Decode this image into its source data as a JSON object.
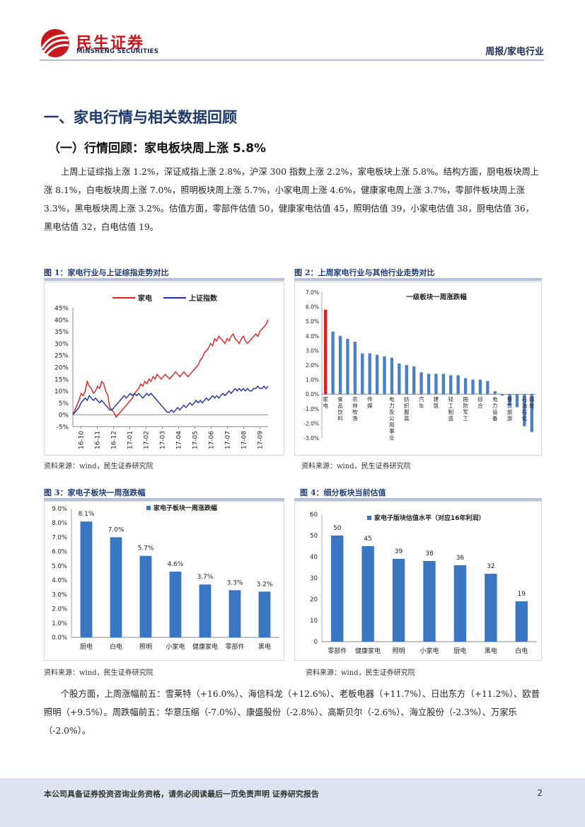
{
  "header": {
    "brand_cn": "民生证券",
    "brand_en": "MINSHENG SECURITIES",
    "right": "周报/家电行业"
  },
  "section": {
    "h1": "一、家电行情与相关数据回顾",
    "h2": "（一）行情回顾：家电板块周上涨 5.8%"
  },
  "paragraph1": "上周上证综指上涨 1.2%，深证成指上涨 2.8%，沪深 300 指数上涨 2.2%，家电板块上涨 5.8%。结构方面，厨电板块周上涨 8.1%，白电板块周上涨 7.0%，照明板块周上涨 5.7%，小家电周上涨 4.6%，健康家电周上涨 3.7%，零部件板块周上涨 3.3%，黑电板块周上涨 3.2%。估值方面，零部件估值 50，健康家电估值 45，照明估值 39，小家电估值 38，厨电估值 36，黑电估值 32，白电估值 19。",
  "paragraph2": "个股方面，上周涨幅前五：雪莱特（+16.0%）、海信科龙（+12.6%）、老板电器（+11.7%）、日出东方（+11.2%）、欧普照明（+9.5%）。周跌幅前五：华意压缩（-7.0%）、康盛股份（-2.8%）、高斯贝尔（-2.6%）、海立股份（-2.3%）、万家乐（-2.0%）。",
  "figures": {
    "fig1_title": "图 1：家电行业与上证综指走势对比",
    "fig2_title": "图 2：上周家电行业与其他行业走势对比",
    "fig3_title": "图 3：家电子板块一周涨跌幅",
    "fig4_title": "图 4：细分板块当前估值",
    "source": "资料来源：wind，民生证券研究院"
  },
  "footer": {
    "text": "本公司具备证券投资咨询业务资格，请务必阅读最后一页免责声明 证券研究报告",
    "page": "2"
  },
  "chart_data": [
    {
      "type": "line",
      "legend": [
        "家电",
        "上证指数"
      ],
      "colors": [
        "#e02020",
        "#1f2eb0"
      ],
      "x_ticks": [
        "16-10",
        "16-11",
        "16-12",
        "17-01",
        "17-02",
        "17-03",
        "17-04",
        "17-05",
        "17-06",
        "17-07",
        "17-08",
        "17-09"
      ],
      "y_ticks": [
        "45%",
        "40%",
        "35%",
        "30%",
        "25%",
        "20%",
        "15%",
        "10%",
        "5%",
        "0%",
        "-5%"
      ],
      "ylim": [
        -5,
        45
      ],
      "series": [
        {
          "name": "家电",
          "values": [
            0,
            2,
            4,
            6,
            9,
            8,
            10,
            14,
            12,
            11,
            9,
            10,
            12,
            11,
            14,
            13,
            10,
            8,
            3,
            2,
            1,
            -1,
            0,
            1,
            2,
            3,
            4,
            5,
            6,
            7,
            9,
            10,
            11,
            13,
            12,
            14,
            13,
            15,
            14,
            16,
            15,
            17,
            16,
            15,
            16,
            17,
            16,
            15,
            16,
            17,
            18,
            17,
            16,
            17,
            18,
            17,
            16,
            17,
            18,
            19,
            20,
            21,
            23,
            24,
            26,
            27,
            28,
            30,
            29,
            32,
            31,
            33,
            32,
            31,
            30,
            32,
            31,
            33,
            34,
            32,
            31,
            30,
            32,
            33,
            31,
            30,
            31,
            32,
            33,
            34,
            33,
            35,
            36,
            37,
            38,
            40
          ]
        },
        {
          "name": "上证指数",
          "values": [
            0,
            1,
            2,
            3,
            5,
            6,
            7,
            6,
            8,
            7,
            6,
            7,
            6,
            5,
            6,
            5,
            4,
            3,
            2,
            2,
            3,
            4,
            5,
            6,
            7,
            8,
            7,
            8,
            9,
            8,
            9,
            8,
            9,
            8,
            7,
            8,
            9,
            8,
            9,
            8,
            7,
            6,
            5,
            4,
            3,
            2,
            1,
            1,
            2,
            1,
            2,
            3,
            2,
            3,
            4,
            3,
            4,
            5,
            4,
            5,
            6,
            5,
            6,
            5,
            6,
            7,
            6,
            7,
            8,
            7,
            8,
            7,
            8,
            9,
            8,
            9,
            10,
            9,
            10,
            11,
            10,
            11,
            10,
            11,
            10,
            11,
            10,
            10,
            11,
            11,
            12,
            11,
            11,
            12,
            11,
            12
          ]
        }
      ]
    },
    {
      "type": "bar",
      "title": "一级板块一周涨跌幅",
      "y_ticks": [
        "7.0%",
        "6.0%",
        "5.0%",
        "4.0%",
        "3.0%",
        "2.0%",
        "1.0%",
        "0.0%",
        "-1.0%",
        "-2.0%",
        "-3.0%"
      ],
      "ylim": [
        -3,
        7
      ],
      "values": [
        5.8,
        4.3,
        4.0,
        3.8,
        3.6,
        2.8,
        2.8,
        2.7,
        2.6,
        2.5,
        2.1,
        2.0,
        1.9,
        1.5,
        1.4,
        1.4,
        1.4,
        1.3,
        1.3,
        1.1,
        1.0,
        1.0,
        0.9,
        0.2,
        -0.1,
        -0.8,
        -0.9,
        -2.2,
        -2.6
      ],
      "highlight_index": 0,
      "colors": [
        "#e02020",
        "#4a80c8"
      ],
      "categories": [
        "家电",
        "",
        "食品饮料",
        "",
        "农林牧渔",
        "",
        "传媒",
        "",
        "",
        "电力及公用事业",
        "",
        "纺织服装",
        "",
        "汽车",
        "",
        "建筑",
        "",
        "轻工制造",
        "",
        "国防军工",
        "",
        "综合",
        "",
        "电力设备",
        "",
        "餐饮旅游",
        "",
        "石油石化",
        "煤炭"
      ]
    },
    {
      "type": "bar",
      "title": "家电子板块一周涨跌幅",
      "categories": [
        "厨电",
        "白电",
        "照明",
        "小家电",
        "健康家电",
        "零部件",
        "黑电"
      ],
      "values": [
        8.1,
        7.0,
        5.7,
        4.6,
        3.7,
        3.3,
        3.2
      ],
      "labels": [
        "8.1%",
        "7.0%",
        "5.7%",
        "4.6%",
        "3.7%",
        "3.3%",
        "3.2%"
      ],
      "y_ticks": [
        "9.0%",
        "8.0%",
        "7.0%",
        "6.0%",
        "5.0%",
        "4.0%",
        "3.0%",
        "2.0%",
        "1.0%",
        "0.0%"
      ],
      "ylim": [
        0,
        9
      ],
      "color": "#3a76c2"
    },
    {
      "type": "bar",
      "title": "家电子版块估值水平（对应16年利润）",
      "categories": [
        "零部件",
        "健康家电",
        "照明",
        "小家电",
        "厨电",
        "黑电",
        "白电"
      ],
      "values": [
        50,
        45,
        39,
        38,
        36,
        32,
        19
      ],
      "labels": [
        "50",
        "45",
        "39",
        "38",
        "36",
        "32",
        "19"
      ],
      "y_ticks": [
        "60",
        "50",
        "40",
        "30",
        "20",
        "10",
        "0"
      ],
      "ylim": [
        0,
        60
      ],
      "color": "#3a76c2"
    }
  ]
}
